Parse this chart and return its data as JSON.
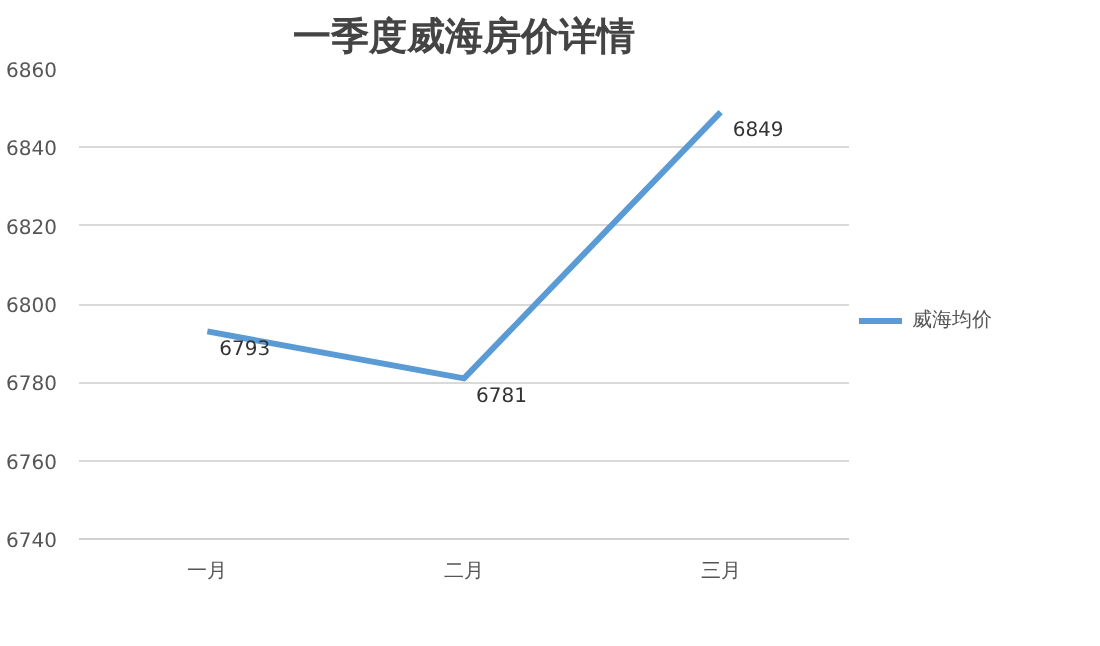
{
  "chart_data": {
    "type": "line",
    "title": "一季度威海房价详情",
    "categories": [
      "一月",
      "二月",
      "三月"
    ],
    "series": [
      {
        "name": "威海均价",
        "color": "#5b9bd5",
        "values": [
          6793,
          6781,
          6849
        ]
      }
    ],
    "ylim": [
      6740,
      6860
    ],
    "yticks": [
      6740,
      6760,
      6780,
      6800,
      6820,
      6840,
      6860
    ],
    "grid": "y",
    "legend": "right",
    "data_labels": true,
    "marker": "none",
    "line_style": "solid"
  }
}
